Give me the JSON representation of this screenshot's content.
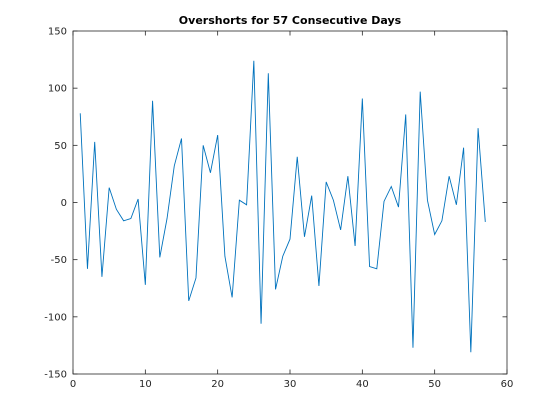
{
  "chart_data": {
    "type": "line",
    "title": "Overshorts for 57 Consecutive Days",
    "xlabel": "",
    "ylabel": "",
    "xlim": [
      0,
      60
    ],
    "ylim": [
      -150,
      150
    ],
    "xticks": [
      0,
      10,
      20,
      30,
      40,
      50,
      60
    ],
    "yticks": [
      -150,
      -100,
      -50,
      0,
      50,
      100,
      150
    ],
    "grid": false,
    "line_color": "#0072BD",
    "series": [
      {
        "x": [
          1,
          2,
          3,
          4,
          5,
          6,
          7,
          8,
          9,
          10,
          11,
          12,
          13,
          14,
          15,
          16,
          17,
          18,
          19,
          20,
          21,
          22,
          23,
          24,
          25,
          26,
          27,
          28,
          29,
          30,
          31,
          32,
          33,
          34,
          35,
          36,
          37,
          38,
          39,
          40,
          41,
          42,
          43,
          44,
          45,
          46,
          47,
          48,
          49,
          50,
          51,
          52,
          53,
          54,
          55,
          56,
          57
        ],
        "values": [
          78,
          -58,
          53,
          -65,
          13,
          -6,
          -16,
          -14,
          3,
          -72,
          89,
          -48,
          -14,
          32,
          56,
          -86,
          -66,
          50,
          26,
          59,
          -47,
          -83,
          2,
          -2,
          124,
          -106,
          113,
          -76,
          -47,
          -32,
          40,
          -30,
          6,
          -73,
          18,
          2,
          -24,
          23,
          -38,
          91,
          -56,
          -58,
          1,
          14,
          -4,
          77,
          -127,
          97,
          2,
          -28,
          -16,
          23,
          -2,
          48,
          -131,
          65,
          -17
        ]
      }
    ]
  }
}
